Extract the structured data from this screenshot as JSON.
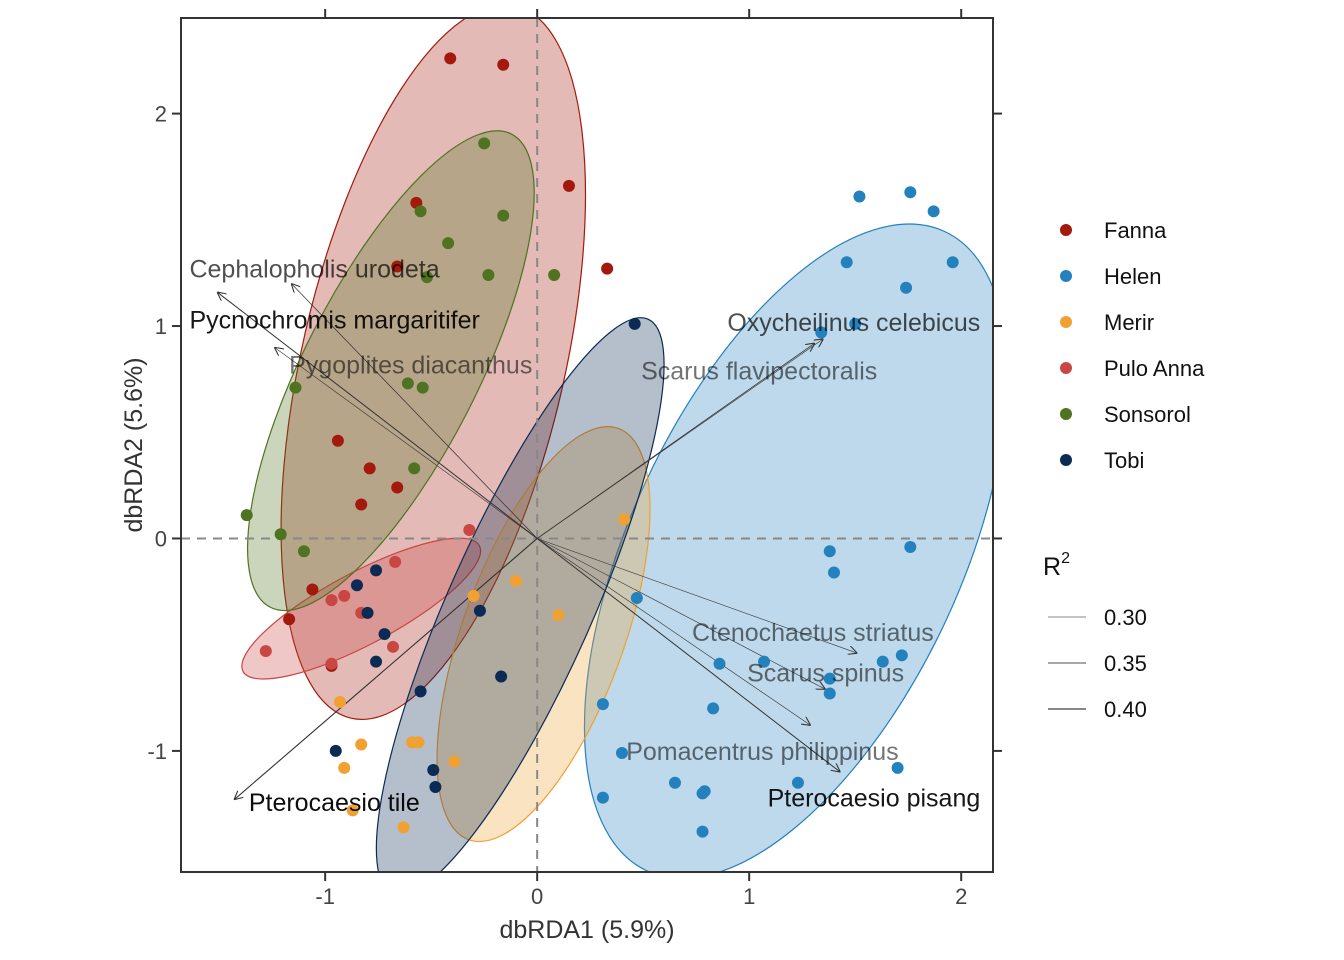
{
  "chart_data": {
    "type": "scatter",
    "xlabel": "dbRDA1 (5.9%)",
    "ylabel": "dbRDA2 (5.6%)",
    "xlim": [
      -1.68,
      2.15
    ],
    "ylim": [
      -1.57,
      2.45
    ],
    "xticks": [
      -1,
      0,
      1,
      2
    ],
    "yticks": [
      -1,
      0,
      1,
      2
    ],
    "zero_lines": "dashed",
    "grid": false,
    "legend": {
      "placement": "right",
      "groups_title": "",
      "r2_title": "R",
      "r2_title_sup": "2",
      "r2_values": [
        "0.30",
        "0.35",
        "0.40"
      ]
    },
    "series": [
      {
        "name": "Fanna",
        "color": "#A31A0C",
        "ellipse": {
          "cx": -0.49,
          "cy": 0.83,
          "rx": 0.62,
          "ry": 1.72,
          "angle": 13
        },
        "points": [
          [
            -0.41,
            2.26
          ],
          [
            -0.16,
            2.23
          ],
          [
            0.15,
            1.66
          ],
          [
            -0.57,
            1.58
          ],
          [
            -0.66,
            1.28
          ],
          [
            0.33,
            1.27
          ],
          [
            -0.94,
            0.46
          ],
          [
            -0.79,
            0.33
          ],
          [
            -0.66,
            0.24
          ],
          [
            -0.83,
            0.16
          ],
          [
            -1.06,
            -0.24
          ],
          [
            -1.17,
            -0.38
          ],
          [
            -0.97,
            -0.6
          ]
        ]
      },
      {
        "name": "Helen",
        "color": "#2381BD",
        "ellipse": {
          "cx": 1.22,
          "cy": -0.06,
          "rx": 0.78,
          "ry": 1.66,
          "angle": 25
        },
        "points": [
          [
            1.52,
            1.61
          ],
          [
            1.76,
            1.63
          ],
          [
            1.87,
            1.54
          ],
          [
            1.46,
            1.3
          ],
          [
            1.96,
            1.3
          ],
          [
            1.74,
            1.18
          ],
          [
            1.5,
            1.01
          ],
          [
            1.34,
            0.97
          ],
          [
            1.76,
            -0.04
          ],
          [
            1.38,
            -0.06
          ],
          [
            1.4,
            -0.16
          ],
          [
            0.47,
            -0.28
          ],
          [
            0.86,
            -0.59
          ],
          [
            1.07,
            -0.58
          ],
          [
            1.63,
            -0.58
          ],
          [
            1.72,
            -0.55
          ],
          [
            1.38,
            -0.66
          ],
          [
            1.38,
            -0.73
          ],
          [
            0.31,
            -0.78
          ],
          [
            0.83,
            -0.8
          ],
          [
            0.4,
            -1.01
          ],
          [
            1.7,
            -1.08
          ],
          [
            0.65,
            -1.15
          ],
          [
            0.79,
            -1.19
          ],
          [
            0.78,
            -1.2
          ],
          [
            1.23,
            -1.15
          ],
          [
            0.31,
            -1.22
          ],
          [
            0.78,
            -1.38
          ]
        ]
      },
      {
        "name": "Merir",
        "color": "#F0A132",
        "ellipse": {
          "cx": 0.03,
          "cy": -0.45,
          "rx": 0.38,
          "ry": 1.03,
          "angle": 20
        },
        "points": [
          [
            0.41,
            0.09
          ],
          [
            0.1,
            -0.36
          ],
          [
            -0.3,
            -0.27
          ],
          [
            -0.1,
            -0.2
          ],
          [
            -0.93,
            -0.77
          ],
          [
            -0.83,
            -0.97
          ],
          [
            -0.59,
            -0.96
          ],
          [
            -0.56,
            -0.96
          ],
          [
            -0.91,
            -1.08
          ],
          [
            -0.39,
            -1.05
          ],
          [
            -0.63,
            -1.36
          ],
          [
            -0.87,
            -1.28
          ]
        ]
      },
      {
        "name": "Pulo Anna",
        "color": "#C94742",
        "ellipse": {
          "cx": -0.83,
          "cy": -0.33,
          "rx": 0.17,
          "ry": 0.63,
          "angle": 62
        },
        "points": [
          [
            -0.32,
            0.04
          ],
          [
            -0.67,
            -0.11
          ],
          [
            -0.91,
            -0.27
          ],
          [
            -0.97,
            -0.29
          ],
          [
            -0.83,
            -0.35
          ],
          [
            -0.68,
            -0.51
          ],
          [
            -1.28,
            -0.53
          ],
          [
            -0.97,
            -0.59
          ]
        ]
      },
      {
        "name": "Sonsorol",
        "color": "#4F7320",
        "ellipse": {
          "cx": -0.69,
          "cy": 0.79,
          "rx": 0.41,
          "ry": 1.25,
          "angle": 27
        },
        "points": [
          [
            -0.25,
            1.86
          ],
          [
            -0.16,
            1.52
          ],
          [
            -0.55,
            1.54
          ],
          [
            -0.42,
            1.39
          ],
          [
            -0.52,
            1.23
          ],
          [
            -0.23,
            1.24
          ],
          [
            0.08,
            1.24
          ],
          [
            -0.61,
            0.73
          ],
          [
            -0.54,
            0.71
          ],
          [
            -1.14,
            0.71
          ],
          [
            -0.58,
            0.33
          ],
          [
            -1.37,
            0.11
          ],
          [
            -1.21,
            0.02
          ],
          [
            -1.1,
            -0.06
          ]
        ]
      },
      {
        "name": "Tobi",
        "color": "#0B2A54",
        "ellipse": {
          "cx": -0.08,
          "cy": -0.32,
          "rx": 0.34,
          "ry": 1.48,
          "angle": 24
        },
        "points": [
          [
            0.46,
            1.01
          ],
          [
            -0.85,
            -0.22
          ],
          [
            -0.76,
            -0.15
          ],
          [
            -0.8,
            -0.35
          ],
          [
            -0.72,
            -0.45
          ],
          [
            -0.76,
            -0.58
          ],
          [
            -0.27,
            -0.34
          ],
          [
            -0.55,
            -0.72
          ],
          [
            -0.17,
            -0.65
          ],
          [
            -0.95,
            -1.0
          ],
          [
            -0.49,
            -1.09
          ],
          [
            -0.48,
            -1.17
          ]
        ]
      }
    ],
    "arrows": [
      {
        "label": "Cephalopholis urodeta",
        "tip": [
          -1.16,
          1.2
        ],
        "label_pos": [
          -1.64,
          1.27
        ],
        "anchor": "start",
        "r2": 0.33
      },
      {
        "label": "Pycnochromis margaritifer",
        "tip": [
          -1.51,
          1.16
        ],
        "label_pos": [
          -1.64,
          1.03
        ],
        "anchor": "start",
        "r2": 0.38
      },
      {
        "label": "Pygoplites diacanthus",
        "tip": [
          -1.24,
          0.9
        ],
        "label_pos": [
          -1.17,
          0.82
        ],
        "anchor": "start",
        "r2": 0.3
      },
      {
        "label": "Oxycheilinus celebicus",
        "tip": [
          1.31,
          0.92
        ],
        "label_pos": [
          2.09,
          1.02
        ],
        "anchor": "end",
        "r2": 0.33
      },
      {
        "label": "Scarus flavipectoralis",
        "tip": [
          1.35,
          0.94
        ],
        "label_pos": [
          0.49,
          0.79
        ],
        "anchor": "start",
        "r2": 0.3
      },
      {
        "label": "Ctenochaetus striatus",
        "tip": [
          1.51,
          -0.54
        ],
        "label_pos": [
          0.73,
          -0.44
        ],
        "anchor": "start",
        "r2": 0.3
      },
      {
        "label": "Scarus spinus",
        "tip": [
          1.36,
          -0.71
        ],
        "label_pos": [
          0.99,
          -0.63
        ],
        "anchor": "start",
        "r2": 0.3
      },
      {
        "label": "Pomacentrus philippinus",
        "tip": [
          1.29,
          -0.88
        ],
        "label_pos": [
          0.42,
          -1.0
        ],
        "anchor": "start",
        "r2": 0.3
      },
      {
        "label": "Pterocaesio pisang",
        "tip": [
          1.43,
          -1.1
        ],
        "label_pos": [
          2.09,
          -1.22
        ],
        "anchor": "end",
        "r2": 0.38
      },
      {
        "label": "Pterocaesio tile",
        "tip": [
          -1.43,
          -1.23
        ],
        "label_pos": [
          -1.36,
          -1.24
        ],
        "anchor": "start",
        "r2": 0.4
      }
    ]
  }
}
